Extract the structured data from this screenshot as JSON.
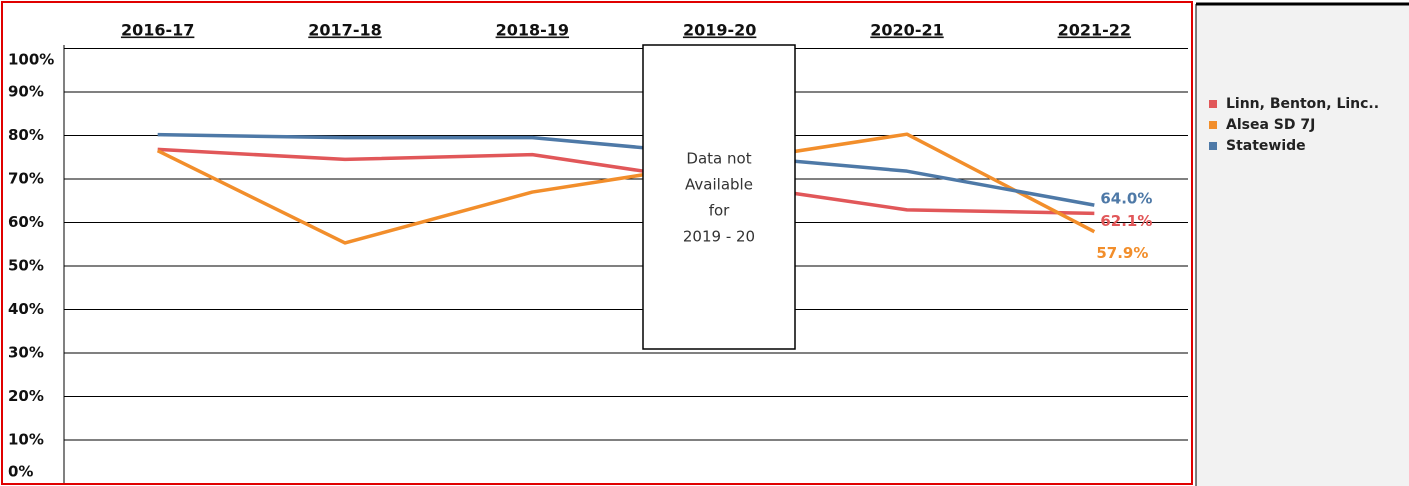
{
  "chart_data": {
    "type": "line",
    "categories": [
      "2016-17",
      "2017-18",
      "2018-19",
      "2019-20",
      "2020-21",
      "2021-22"
    ],
    "series": [
      {
        "name": "Linn, Benton, Linc..",
        "color": "#e15759",
        "values": [
          76.8,
          74.5,
          75.6,
          69.2,
          62.9,
          62.1
        ],
        "value_labels": [
          null,
          null,
          null,
          null,
          null,
          "62.1%"
        ]
      },
      {
        "name": "Alsea SD 7J",
        "color": "#f28e2b",
        "values": [
          76.5,
          55.3,
          67.0,
          73.7,
          80.3,
          57.9
        ],
        "value_labels": [
          null,
          null,
          null,
          null,
          null,
          "57.9%"
        ]
      },
      {
        "name": "Statewide",
        "color": "#4e79a7",
        "values": [
          80.2,
          79.5,
          79.5,
          75.6,
          71.8,
          64.0
        ],
        "value_labels": [
          null,
          null,
          null,
          null,
          null,
          "64.0%"
        ]
      }
    ],
    "ylim": [
      0,
      100
    ],
    "yticks": [
      {
        "value": 0,
        "label": "0%"
      },
      {
        "value": 10,
        "label": "10%"
      },
      {
        "value": 20,
        "label": "20%"
      },
      {
        "value": 30,
        "label": "30%"
      },
      {
        "value": 40,
        "label": "40%"
      },
      {
        "value": 50,
        "label": "50%"
      },
      {
        "value": 60,
        "label": "60%"
      },
      {
        "value": 70,
        "label": "70%"
      },
      {
        "value": 80,
        "label": "80%"
      },
      {
        "value": 90,
        "label": "90%"
      },
      {
        "value": 100,
        "label": "100%"
      }
    ],
    "grid": true,
    "annotation": [
      "Data not",
      "Available",
      "for",
      "2019 - 20"
    ],
    "legend": "right"
  }
}
